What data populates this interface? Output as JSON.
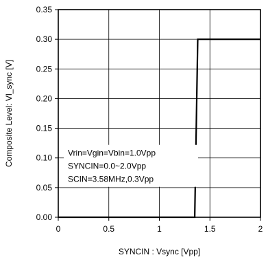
{
  "chart_data": {
    "type": "line",
    "title": "",
    "xlabel": "SYNCIN : Vsync [Vpp]",
    "ylabel": "Composite Level: Vl_sync [V]",
    "xlim": [
      0,
      2
    ],
    "ylim": [
      0,
      0.35
    ],
    "x_ticks": [
      0,
      0.5,
      1,
      1.5,
      2
    ],
    "x_tick_labels": [
      "0",
      "0.5",
      "1",
      "1.5",
      "2"
    ],
    "y_ticks": [
      0,
      0.05,
      0.1,
      0.15,
      0.2,
      0.25,
      0.3,
      0.35
    ],
    "y_tick_labels": [
      "0.00",
      "0.05",
      "0.10",
      "0.15",
      "0.20",
      "0.25",
      "0.30",
      "0.35"
    ],
    "grid": true,
    "series": [
      {
        "x": [
          0,
          1.35,
          1.38,
          2
        ],
        "y": [
          0,
          0,
          0.3,
          0.3
        ],
        "color": "#000000"
      }
    ],
    "annotations": [
      "Vrin=Vgin=Vbin=1.0Vpp",
      "SYNCIN=0.0~2.0Vpp",
      "SCIN=3.58MHz,0.3Vpp"
    ]
  }
}
